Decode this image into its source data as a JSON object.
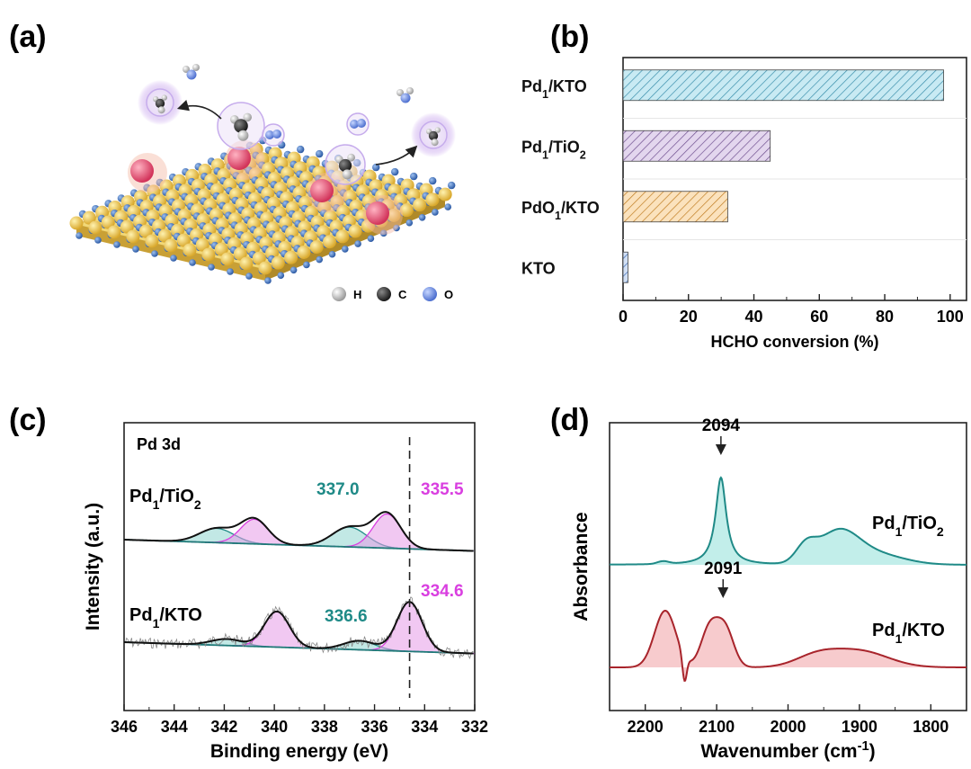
{
  "panels": {
    "a": {
      "label": "(a)",
      "legend": [
        "H",
        "C",
        "O"
      ],
      "colors": {
        "surface": "#e8c24a",
        "oxygen": "#3e6db5",
        "pd": "#e64a6a",
        "h": "#dcdcdc",
        "c": "#333333",
        "o": "#5b80d6"
      }
    },
    "b": {
      "label": "(b)"
    },
    "c": {
      "label": "(c)"
    },
    "d": {
      "label": "(d)"
    }
  },
  "chart_data": [
    {
      "id": "b",
      "type": "bar",
      "orientation": "horizontal",
      "categories": [
        {
          "base": "Pd",
          "sub": "1",
          "rest": "/KTO"
        },
        {
          "base": "Pd",
          "sub": "1",
          "rest": "/TiO",
          "sub2": "2"
        },
        {
          "base": "PdO",
          "sub": "1",
          "rest": "/KTO"
        },
        {
          "base": "KTO"
        }
      ],
      "values": [
        98,
        45,
        32,
        1.5
      ],
      "colors": [
        "#6ec6db",
        "#a88ac2",
        "#f2b765",
        "#7ea4dd"
      ],
      "xlabel": "HCHO conversion (%)",
      "xlim": [
        0,
        105
      ],
      "xticks": [
        0,
        20,
        40,
        60,
        80,
        100
      ],
      "hatch": "diagonal"
    },
    {
      "id": "c",
      "type": "line",
      "title": "Pd 3d",
      "xlabel": "Binding energy (eV)",
      "ylabel": "Intensity (a.u.)",
      "xlim": [
        346,
        332
      ],
      "xticks": [
        346,
        344,
        342,
        340,
        338,
        336,
        334,
        332
      ],
      "reference_line": 334.6,
      "series": [
        {
          "name": {
            "base": "Pd",
            "sub": "1",
            "rest": "/TiO",
            "sub2": "2"
          },
          "peaks": [
            {
              "center": 335.5,
              "label": "335.5",
              "color": "#d93fe0"
            },
            {
              "center": 337.0,
              "label": "337.0",
              "color": "#1f8a87"
            }
          ]
        },
        {
          "name": {
            "base": "Pd",
            "sub": "1",
            "rest": "/KTO"
          },
          "peaks": [
            {
              "center": 334.6,
              "label": "334.6",
              "color": "#d93fe0"
            },
            {
              "center": 336.6,
              "label": "336.6",
              "color": "#1f8a87"
            }
          ]
        }
      ]
    },
    {
      "id": "d",
      "type": "line",
      "xlabel": "Wavenumber (cm",
      "xlabel_sup": "-1",
      "xlabel_end": ")",
      "ylabel": "Absorbance",
      "xlim": [
        2250,
        1750
      ],
      "xticks": [
        2200,
        2100,
        2000,
        1900,
        1800
      ],
      "series": [
        {
          "name": {
            "base": "Pd",
            "sub": "1",
            "rest": "/TiO",
            "sub2": "2"
          },
          "color": "#1f8a87",
          "fill": "#8fe0d9",
          "annotation": {
            "x": 2094,
            "label": "2094"
          }
        },
        {
          "name": {
            "base": "Pd",
            "sub": "1",
            "rest": "/KTO"
          },
          "color": "#a8242b",
          "fill": "#f0a0a4",
          "annotation": {
            "x": 2091,
            "label": "2091"
          }
        }
      ]
    }
  ]
}
